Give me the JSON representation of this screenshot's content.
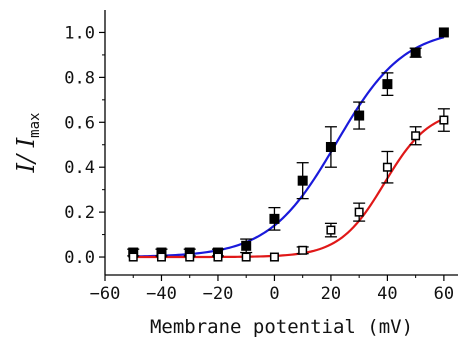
{
  "chart_data": {
    "type": "scatter",
    "title": "",
    "xlabel": "Membrane potential (mV)",
    "ylabel": {
      "main": "I/ I",
      "sub": "max"
    },
    "xlim": [
      -60,
      65
    ],
    "ylim": [
      -0.08,
      1.1
    ],
    "xticks": [
      -60,
      -40,
      -20,
      0,
      20,
      40,
      60
    ],
    "yticks": [
      0.0,
      0.2,
      0.4,
      0.6,
      0.8,
      1.0
    ],
    "ytick_labels": [
      "0.0",
      "0.2",
      "0.4",
      "0.6",
      "0.8",
      "1.0"
    ],
    "grid": false,
    "series": [
      {
        "marker": "filled-square",
        "line_color": "#1a1adb",
        "marker_color": "#000000",
        "points": [
          {
            "x": -50,
            "y": 0.02,
            "err": 0.015
          },
          {
            "x": -40,
            "y": 0.02,
            "err": 0.015
          },
          {
            "x": -30,
            "y": 0.02,
            "err": 0.015
          },
          {
            "x": -20,
            "y": 0.02,
            "err": 0.015
          },
          {
            "x": -10,
            "y": 0.05,
            "err": 0.03
          },
          {
            "x": 0,
            "y": 0.17,
            "err": 0.05
          },
          {
            "x": 10,
            "y": 0.34,
            "err": 0.08
          },
          {
            "x": 20,
            "y": 0.49,
            "err": 0.09
          },
          {
            "x": 30,
            "y": 0.63,
            "err": 0.06
          },
          {
            "x": 40,
            "y": 0.77,
            "err": 0.05
          },
          {
            "x": 50,
            "y": 0.91,
            "err": 0.02
          },
          {
            "x": 60,
            "y": 1.0,
            "err": 0.0
          }
        ],
        "fit": {
          "vhalf": 22,
          "slope": 12,
          "amplitude": 1.02
        }
      },
      {
        "marker": "open-square",
        "line_color": "#e01818",
        "marker_color": "#000000",
        "points": [
          {
            "x": -50,
            "y": 0.0,
            "err": 0.0
          },
          {
            "x": -40,
            "y": 0.0,
            "err": 0.0
          },
          {
            "x": -30,
            "y": 0.0,
            "err": 0.0
          },
          {
            "x": -20,
            "y": 0.0,
            "err": 0.0
          },
          {
            "x": -10,
            "y": 0.0,
            "err": 0.0
          },
          {
            "x": 0,
            "y": 0.0,
            "err": 0.0
          },
          {
            "x": 10,
            "y": 0.03,
            "err": 0.015
          },
          {
            "x": 20,
            "y": 0.12,
            "err": 0.03
          },
          {
            "x": 30,
            "y": 0.2,
            "err": 0.04
          },
          {
            "x": 40,
            "y": 0.4,
            "err": 0.07
          },
          {
            "x": 50,
            "y": 0.54,
            "err": 0.04
          },
          {
            "x": 60,
            "y": 0.61,
            "err": 0.05
          }
        ],
        "fit": {
          "vhalf": 39,
          "slope": 8,
          "amplitude": 0.66
        }
      }
    ]
  }
}
